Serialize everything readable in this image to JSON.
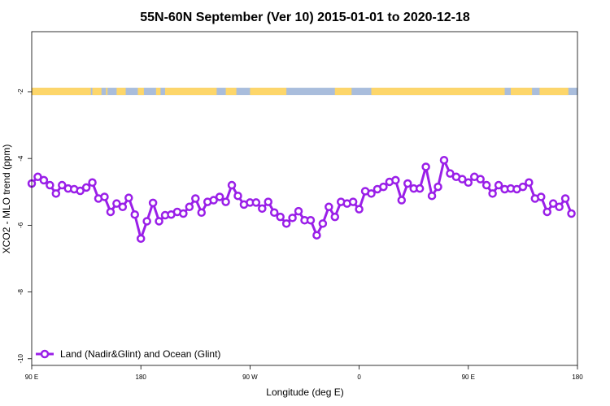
{
  "chart_data": {
    "type": "line",
    "title": "55N-60N September (Ver 10)   2015-01-01 to 2020-12-18",
    "xlabel": "Longitude (deg E)",
    "ylabel": "XCO2 - MLO trend (ppm)",
    "xlim": [
      90,
      450
    ],
    "ylim": [
      -10.2,
      -0.2
    ],
    "grid": false,
    "legend_position": "bottom-left",
    "x_ticks": [
      {
        "value": 90,
        "label": "90 E"
      },
      {
        "value": 162,
        "label": "180"
      },
      {
        "value": 234,
        "label": "90 W"
      },
      {
        "value": 306,
        "label": "0"
      },
      {
        "value": 378,
        "label": "90 E"
      },
      {
        "value": 450,
        "label": "180"
      }
    ],
    "y_ticks": [
      {
        "value": -2,
        "label": "-2"
      },
      {
        "value": -4,
        "label": "-4"
      },
      {
        "value": -6,
        "label": "-6"
      },
      {
        "value": -8,
        "label": "-8"
      },
      {
        "value": -10,
        "label": "-10"
      }
    ],
    "land_ocean_band": {
      "y_range": [
        -2.1,
        -1.88
      ],
      "ocean_color": "#a9bddc",
      "land_color": "#fdd66a",
      "land_segments": [
        [
          90,
          129
        ],
        [
          130,
          136
        ],
        [
          139,
          140
        ],
        [
          146,
          152
        ],
        [
          160,
          164
        ],
        [
          172,
          175
        ],
        [
          178,
          212
        ],
        [
          218,
          225
        ],
        [
          234,
          258
        ],
        [
          290,
          301
        ],
        [
          314,
          402
        ],
        [
          406,
          420
        ],
        [
          425,
          444
        ]
      ]
    },
    "series": [
      {
        "name": "Land (Nadir&Glint) and Ocean (Glint)",
        "color": "#9a1fe8",
        "values": [
          [
            90,
            -4.75
          ],
          [
            94,
            -4.55
          ],
          [
            98,
            -4.65
          ],
          [
            102,
            -4.8
          ],
          [
            106,
            -5.05
          ],
          [
            110,
            -4.8
          ],
          [
            114,
            -4.9
          ],
          [
            118,
            -4.92
          ],
          [
            122,
            -4.97
          ],
          [
            126,
            -4.87
          ],
          [
            130,
            -4.72
          ],
          [
            134,
            -5.2
          ],
          [
            138,
            -5.15
          ],
          [
            142,
            -5.6
          ],
          [
            146,
            -5.35
          ],
          [
            150,
            -5.45
          ],
          [
            154,
            -5.18
          ],
          [
            158,
            -5.68
          ],
          [
            162,
            -6.4
          ],
          [
            166,
            -5.88
          ],
          [
            170,
            -5.33
          ],
          [
            174,
            -5.88
          ],
          [
            178,
            -5.7
          ],
          [
            182,
            -5.68
          ],
          [
            186,
            -5.6
          ],
          [
            190,
            -5.65
          ],
          [
            194,
            -5.45
          ],
          [
            198,
            -5.2
          ],
          [
            202,
            -5.62
          ],
          [
            206,
            -5.3
          ],
          [
            210,
            -5.25
          ],
          [
            214,
            -5.15
          ],
          [
            218,
            -5.3
          ],
          [
            222,
            -4.8
          ],
          [
            226,
            -5.12
          ],
          [
            230,
            -5.38
          ],
          [
            234,
            -5.32
          ],
          [
            238,
            -5.32
          ],
          [
            242,
            -5.5
          ],
          [
            246,
            -5.3
          ],
          [
            250,
            -5.62
          ],
          [
            254,
            -5.75
          ],
          [
            258,
            -5.95
          ],
          [
            262,
            -5.78
          ],
          [
            266,
            -5.58
          ],
          [
            270,
            -5.85
          ],
          [
            274,
            -5.85
          ],
          [
            278,
            -6.3
          ],
          [
            282,
            -5.95
          ],
          [
            286,
            -5.45
          ],
          [
            290,
            -5.75
          ],
          [
            294,
            -5.3
          ],
          [
            298,
            -5.35
          ],
          [
            302,
            -5.3
          ],
          [
            306,
            -5.52
          ],
          [
            310,
            -4.98
          ],
          [
            314,
            -5.05
          ],
          [
            318,
            -4.92
          ],
          [
            322,
            -4.85
          ],
          [
            326,
            -4.7
          ],
          [
            330,
            -4.65
          ],
          [
            334,
            -5.25
          ],
          [
            338,
            -4.75
          ],
          [
            342,
            -4.9
          ],
          [
            346,
            -4.9
          ],
          [
            350,
            -4.25
          ],
          [
            354,
            -5.12
          ],
          [
            358,
            -4.85
          ],
          [
            362,
            -4.05
          ],
          [
            366,
            -4.45
          ],
          [
            370,
            -4.55
          ],
          [
            374,
            -4.62
          ],
          [
            378,
            -4.72
          ],
          [
            382,
            -4.55
          ],
          [
            386,
            -4.62
          ],
          [
            390,
            -4.8
          ],
          [
            394,
            -5.05
          ],
          [
            398,
            -4.8
          ],
          [
            402,
            -4.92
          ],
          [
            406,
            -4.9
          ],
          [
            410,
            -4.92
          ],
          [
            414,
            -4.85
          ],
          [
            418,
            -4.72
          ],
          [
            422,
            -5.2
          ],
          [
            426,
            -5.15
          ],
          [
            430,
            -5.6
          ],
          [
            434,
            -5.35
          ],
          [
            438,
            -5.45
          ],
          [
            442,
            -5.2
          ],
          [
            446,
            -5.65
          ]
        ]
      }
    ]
  }
}
